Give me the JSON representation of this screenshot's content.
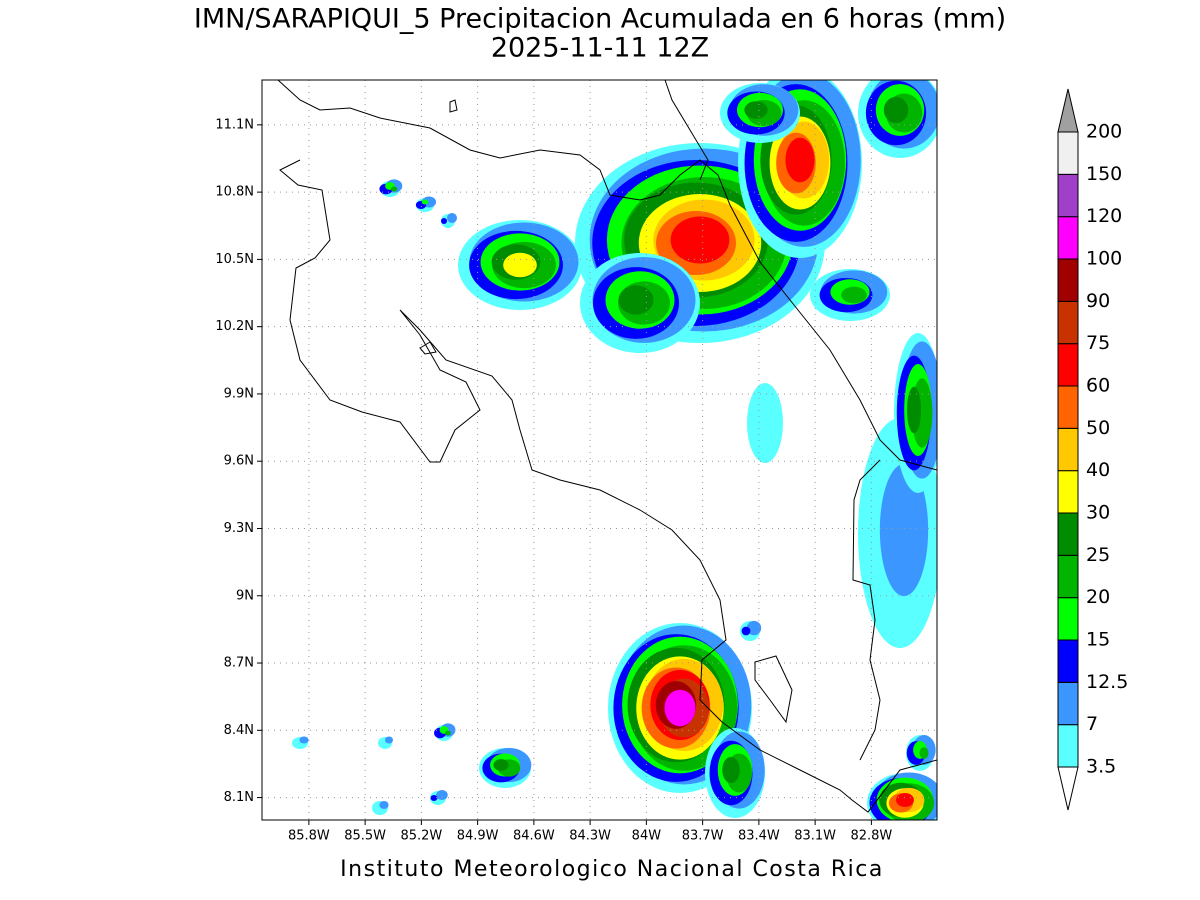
{
  "title": "IMN/SARAPIQUI_5 Precipitacion Acumulada en 6 horas (mm)",
  "subtitle": "2025-11-11 12Z",
  "footer": "Instituto Meteorologico Nacional Costa Rica",
  "map": {
    "xlim": [
      -86.05,
      -82.45
    ],
    "ylim": [
      8.0,
      11.3
    ],
    "grid": true,
    "xticks": [
      {
        "value": -85.8,
        "label": "85.8W"
      },
      {
        "value": -85.5,
        "label": "85.5W"
      },
      {
        "value": -85.2,
        "label": "85.2W"
      },
      {
        "value": -84.9,
        "label": "84.9W"
      },
      {
        "value": -84.6,
        "label": "84.6W"
      },
      {
        "value": -84.3,
        "label": "84.3W"
      },
      {
        "value": -84,
        "label": "84W"
      },
      {
        "value": -83.7,
        "label": "83.7W"
      },
      {
        "value": -83.4,
        "label": "83.4W"
      },
      {
        "value": -83.1,
        "label": "83.1W"
      },
      {
        "value": -82.8,
        "label": "82.8W"
      }
    ],
    "yticks": [
      {
        "value": 8.1,
        "label": "8.1N"
      },
      {
        "value": 8.4,
        "label": "8.4N"
      },
      {
        "value": 8.7,
        "label": "8.7N"
      },
      {
        "value": 9,
        "label": "9N"
      },
      {
        "value": 9.3,
        "label": "9.3N"
      },
      {
        "value": 9.6,
        "label": "9.6N"
      },
      {
        "value": 9.9,
        "label": "9.9N"
      },
      {
        "value": 10.2,
        "label": "10.2N"
      },
      {
        "value": 10.5,
        "label": "10.5N"
      },
      {
        "value": 10.8,
        "label": "10.8N"
      },
      {
        "value": 11.1,
        "label": "11.1N"
      }
    ]
  },
  "colorbar": {
    "levels": [
      3.5,
      7,
      12.5,
      15,
      20,
      25,
      30,
      40,
      50,
      60,
      75,
      90,
      100,
      120,
      150,
      200
    ],
    "colors": [
      "#ffffff",
      "#5affff",
      "#3c96ff",
      "#0000ff",
      "#00ff00",
      "#00b400",
      "#008c00",
      "#ffff00",
      "#ffc800",
      "#ff6400",
      "#ff0000",
      "#c83200",
      "#a00000",
      "#ff00ff",
      "#a040c8",
      "#f0f0f0",
      "#a0a0a0"
    ]
  }
}
